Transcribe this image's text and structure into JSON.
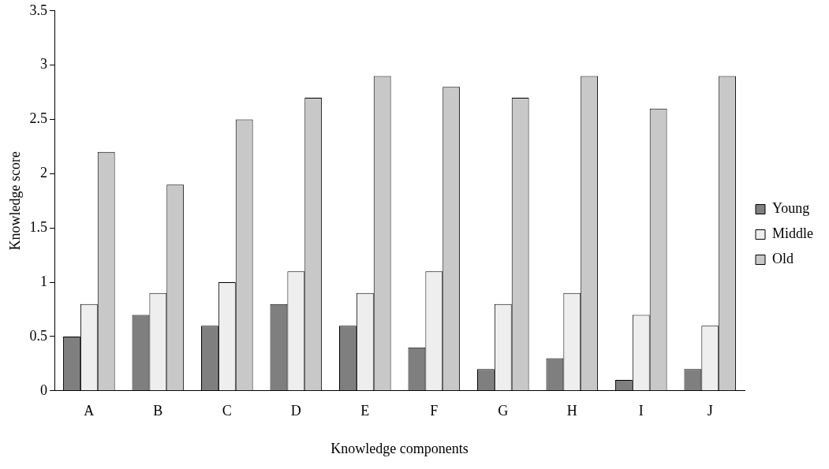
{
  "chart_data": {
    "type": "bar",
    "xlabel": "Knowledge components",
    "ylabel": "Knowledge score",
    "categories": [
      "A",
      "B",
      "C",
      "D",
      "E",
      "F",
      "G",
      "H",
      "I",
      "J"
    ],
    "series": [
      {
        "name": "Young",
        "color": "#7f7f7f",
        "values": [
          0.5,
          0.7,
          0.6,
          0.8,
          0.6,
          0.4,
          0.2,
          0.3,
          0.1,
          0.2
        ]
      },
      {
        "name": "Middle",
        "color": "#eeeeee",
        "values": [
          0.8,
          0.9,
          1.0,
          1.1,
          0.9,
          1.1,
          0.8,
          0.9,
          0.7,
          0.6
        ]
      },
      {
        "name": "Old",
        "color": "#c8c8c8",
        "values": [
          2.2,
          1.9,
          2.5,
          2.7,
          2.9,
          2.8,
          2.7,
          2.9,
          2.6,
          2.9
        ]
      }
    ],
    "ylim": [
      0,
      3.5
    ],
    "yticks": [
      0,
      0.5,
      1,
      1.5,
      2,
      2.5,
      3,
      3.5
    ],
    "grid": false,
    "legend": "right"
  }
}
